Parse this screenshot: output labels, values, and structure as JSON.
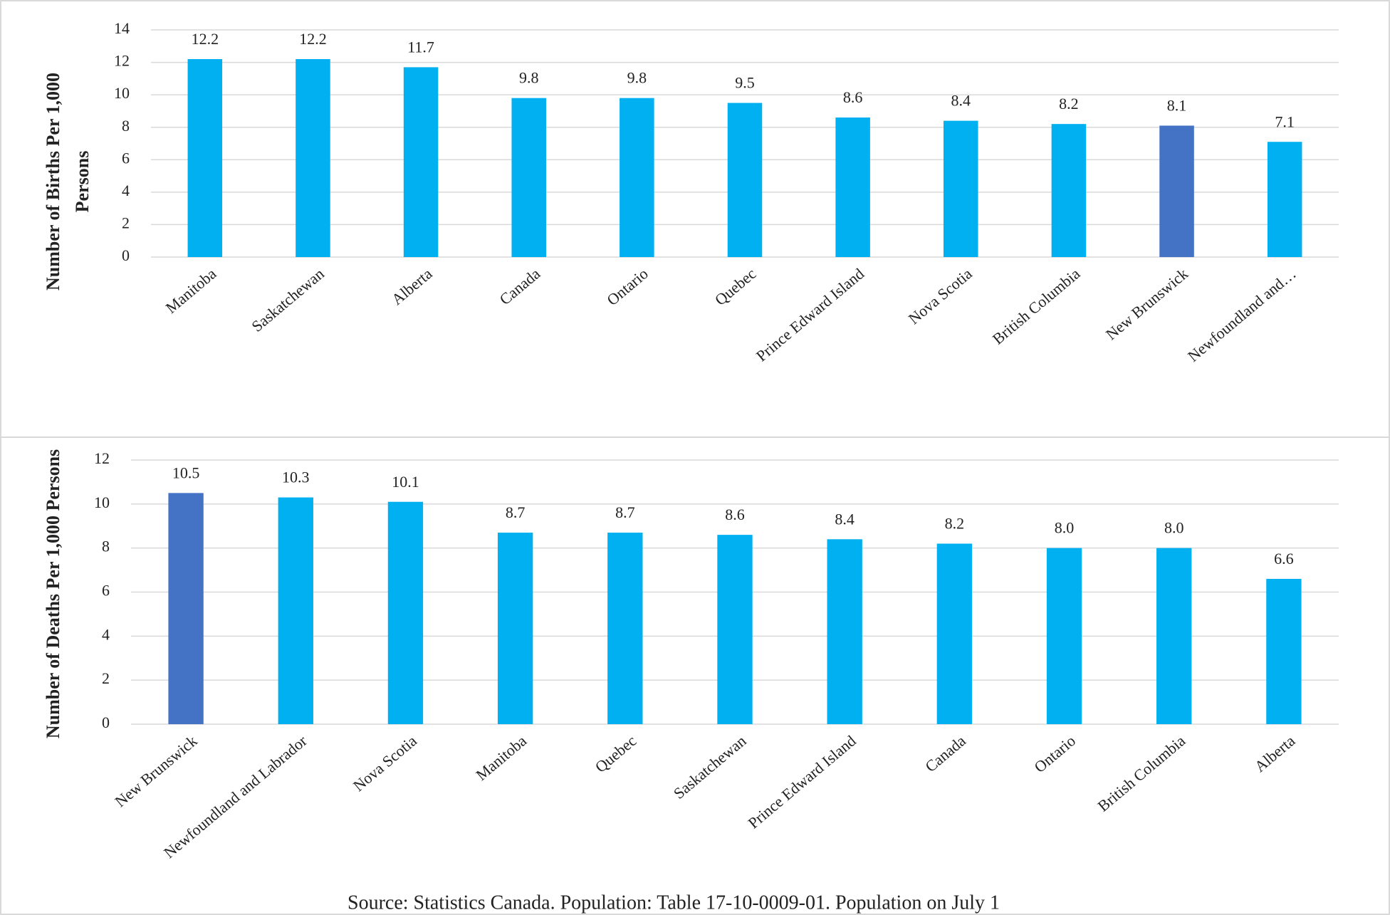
{
  "chart_data": [
    {
      "type": "bar",
      "ylabel": [
        "Number of Births Per 1,000",
        "Persons"
      ],
      "categories": [
        "Manitoba",
        "Saskatchewan",
        "Alberta",
        "Canada",
        "Ontario",
        "Quebec",
        "Prince Edward Island",
        "Nova Scotia",
        "British Columbia",
        "New Brunswick",
        "Newfoundland and…"
      ],
      "values": [
        12.2,
        12.2,
        11.7,
        9.8,
        9.8,
        9.5,
        8.6,
        8.4,
        8.2,
        8.1,
        7.1
      ],
      "colors": [
        "#00b0f0",
        "#00b0f0",
        "#00b0f0",
        "#00b0f0",
        "#00b0f0",
        "#00b0f0",
        "#00b0f0",
        "#00b0f0",
        "#00b0f0",
        "#4472c4",
        "#00b0f0"
      ],
      "ylim": [
        0,
        14
      ],
      "yticks": [
        0,
        2,
        4,
        6,
        8,
        10,
        12,
        14
      ],
      "grid": true
    },
    {
      "type": "bar",
      "ylabel": "Number of Deaths Per 1,000 Persons",
      "categories": [
        "New Brunswick",
        "Newfoundland and Labrador",
        "Nova Scotia",
        "Manitoba",
        "Quebec",
        "Saskatchewan",
        "Prince Edward Island",
        "Canada",
        "Ontario",
        "British Columbia",
        "Alberta"
      ],
      "values": [
        10.5,
        10.3,
        10.1,
        8.7,
        8.7,
        8.6,
        8.4,
        8.2,
        8.0,
        8.0,
        6.6
      ],
      "value_labels": [
        "10.5",
        "10.3",
        "10.1",
        "8.7",
        "8.7",
        "8.6",
        "8.4",
        "8.2",
        "8.0",
        "8.0",
        "6.6"
      ],
      "colors": [
        "#4472c4",
        "#00b0f0",
        "#00b0f0",
        "#00b0f0",
        "#00b0f0",
        "#00b0f0",
        "#00b0f0",
        "#00b0f0",
        "#00b0f0",
        "#00b0f0",
        "#00b0f0"
      ],
      "ylim": [
        0,
        12
      ],
      "yticks": [
        0,
        2,
        4,
        6,
        8,
        10,
        12
      ],
      "grid": true
    }
  ],
  "source": "Source: Statistics Canada. Population: Table 17-10-0009-01. Population on July 1"
}
